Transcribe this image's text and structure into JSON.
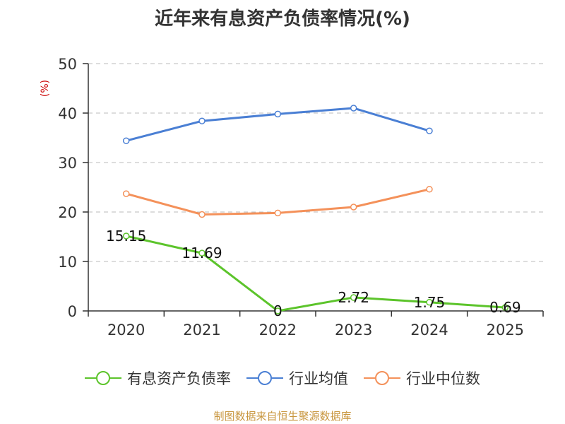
{
  "chart_data": {
    "type": "line",
    "title": "近年来有息资产负债率情况(%)",
    "ylabel": "(%)",
    "categories": [
      "2020",
      "2021",
      "2022",
      "2023",
      "2024",
      "2025"
    ],
    "ylim": [
      0,
      50
    ],
    "yticks": [
      "0",
      "10",
      "20",
      "30",
      "40",
      "50"
    ],
    "grid": true,
    "legend_position": "bottom",
    "series": [
      {
        "name": "有息资产负债率",
        "color": "#5cc42b",
        "values": [
          15.15,
          11.69,
          0,
          2.72,
          1.75,
          0.69
        ],
        "labels": [
          "15.15",
          "11.69",
          "0",
          "2.72",
          "1.75",
          "0.69"
        ]
      },
      {
        "name": "行业均值",
        "color": "#4a7fd4",
        "values": [
          34.4,
          38.4,
          39.8,
          41.0,
          36.4,
          null
        ]
      },
      {
        "name": "行业中位数",
        "color": "#f4915a",
        "values": [
          23.7,
          19.5,
          19.8,
          21.0,
          24.6,
          null
        ]
      }
    ]
  },
  "source": "制图数据来自恒生聚源数据库"
}
